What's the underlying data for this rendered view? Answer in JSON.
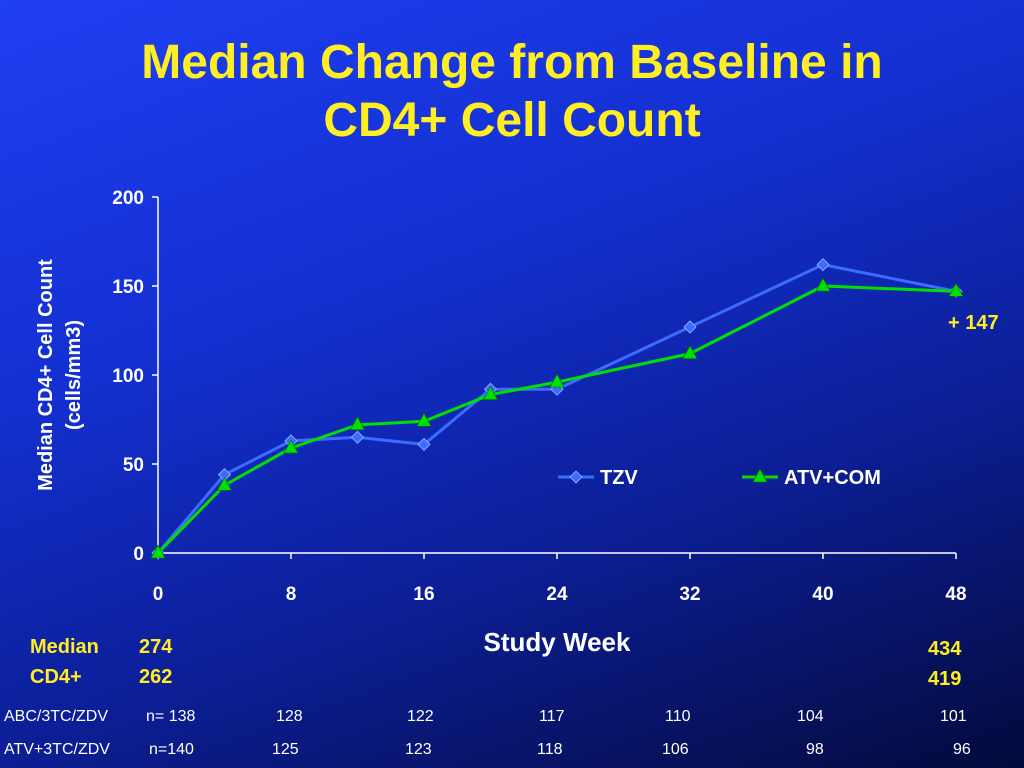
{
  "title": {
    "line1": "Median Change from Baseline in",
    "line2": "CD4+ Cell Count"
  },
  "chart_data": {
    "type": "line",
    "ylabel_line1": "Median CD4+ Cell Count",
    "ylabel_line2": "(cells/mm3)",
    "xlabel": "Study Week",
    "ylim": [
      0,
      200
    ],
    "xlim": [
      0,
      48
    ],
    "yticks": [
      "0",
      "50",
      "100",
      "150",
      "200"
    ],
    "xticks": [
      "0",
      "8",
      "16",
      "24",
      "32",
      "40",
      "48"
    ],
    "grid": false,
    "legend_position": "center-right",
    "series": [
      {
        "name": "TZV",
        "color": "#3c6cff",
        "marker": "diamond",
        "x": [
          0,
          4,
          8,
          12,
          16,
          20,
          24,
          32,
          40,
          48
        ],
        "values": [
          0,
          44,
          63,
          65,
          61,
          92,
          92,
          127,
          162,
          147
        ]
      },
      {
        "name": "ATV+COM",
        "color": "#00e000",
        "marker": "triangle",
        "x": [
          0,
          4,
          8,
          12,
          16,
          20,
          24,
          32,
          40,
          48
        ],
        "values": [
          0,
          38,
          59,
          72,
          74,
          89,
          96,
          112,
          150,
          147
        ]
      }
    ],
    "annotation": "+ 147"
  },
  "median": {
    "label1": "Median",
    "label2": "CD4+",
    "start1": "274",
    "start2": "262",
    "end1": "434",
    "end2": "419"
  },
  "counts": [
    {
      "label": "ABC/3TC/ZDV",
      "values": [
        "n= 138",
        "128",
        "122",
        "117",
        "110",
        "104",
        "101"
      ]
    },
    {
      "label": "ATV+3TC/ZDV",
      "values": [
        "n=140",
        "125",
        "123",
        "118",
        "106",
        "98",
        "96"
      ]
    }
  ]
}
